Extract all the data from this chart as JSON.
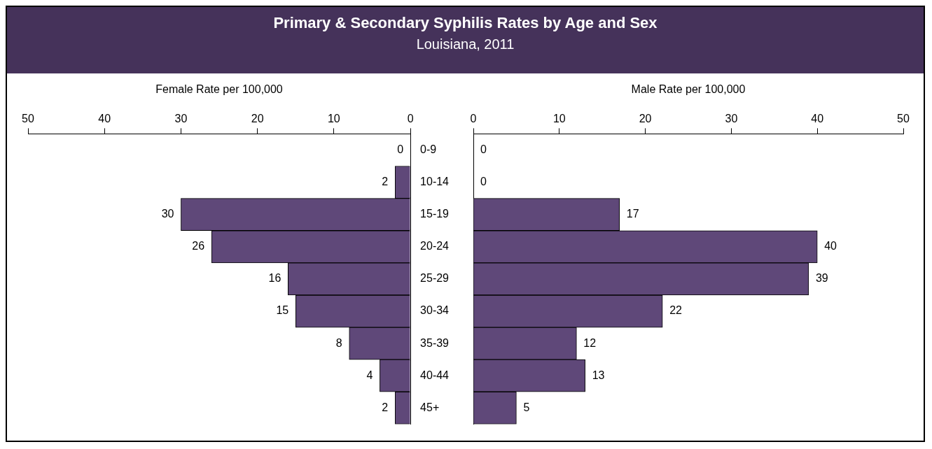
{
  "chart_data": [
    {
      "type": "bar",
      "orientation": "horizontal",
      "title": "Primary & Secondary Syphilis Rates by Age and Sex",
      "subtitle": "Louisiana, 2011",
      "xlabel": "Female Rate per 100,000",
      "categories": [
        "0-9",
        "10-14",
        "15-19",
        "20-24",
        "25-29",
        "30-34",
        "35-39",
        "40-44",
        "45+"
      ],
      "values": [
        0,
        2,
        30,
        26,
        16,
        15,
        8,
        4,
        2
      ],
      "color": "#5f4879",
      "xlim": [
        50,
        0
      ],
      "xticks": [
        50,
        40,
        30,
        20,
        10,
        0
      ],
      "data_labels": true
    },
    {
      "type": "bar",
      "orientation": "horizontal",
      "xlabel": "Male Rate per 100,000",
      "categories": [
        null,
        null,
        null,
        null,
        null,
        null,
        null,
        null,
        null
      ],
      "values": [
        0,
        0,
        17,
        40,
        39,
        22,
        12,
        13,
        5
      ],
      "color": "#5f4879",
      "xlim": [
        0,
        50
      ],
      "xticks": [
        0,
        10,
        20,
        30,
        40,
        50
      ],
      "data_labels": true,
      "tick_labels": "x"
    }
  ]
}
